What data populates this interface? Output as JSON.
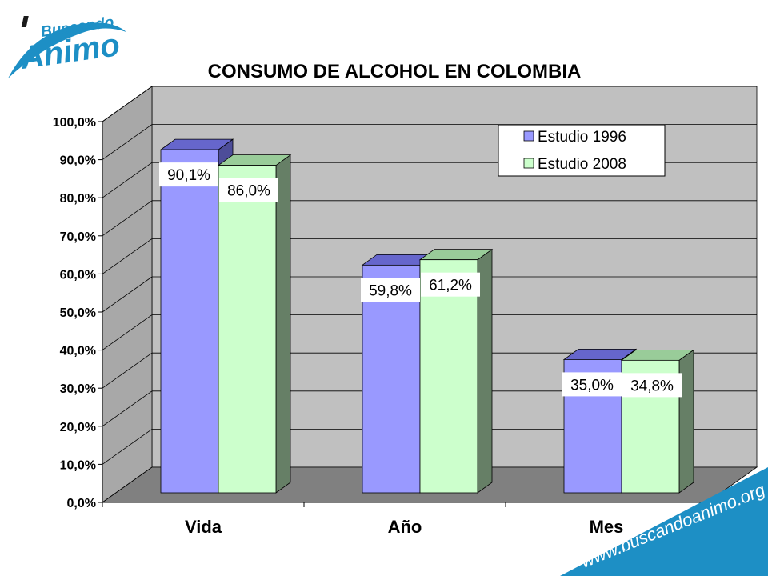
{
  "logo": {
    "small_text": "Buscando",
    "large_text": "Animo"
  },
  "watermark": {
    "url": "www.buscandoanimo.org"
  },
  "colors": {
    "series_1996_front": "#9999ff",
    "series_1996_top": "#6666cc",
    "series_1996_side": "#4d4d99",
    "series_2008_front": "#ccffcc",
    "series_2008_top": "#99cc99",
    "series_2008_side": "#667f66",
    "wall": "#c0c0c0",
    "floor": "#808080",
    "brand_blue": "#1d8fc5"
  },
  "chart_data": {
    "type": "bar",
    "title": "CONSUMO DE ALCOHOL EN COLOMBIA",
    "categories": [
      "Vida",
      "Año",
      "Mes"
    ],
    "series": [
      {
        "name": "Estudio 1996",
        "values": [
          90.1,
          59.8,
          35.0
        ],
        "labels": [
          "90,1%",
          "59,8%",
          "35,0%"
        ]
      },
      {
        "name": "Estudio 2008",
        "values": [
          86.0,
          61.2,
          34.8
        ],
        "labels": [
          "86,0%",
          "61,2%",
          "34,8%"
        ]
      }
    ],
    "yticks": [
      "0,0%",
      "10,0%",
      "20,0%",
      "30,0%",
      "40,0%",
      "50,0%",
      "60,0%",
      "70,0%",
      "80,0%",
      "90,0%",
      "100,0%"
    ],
    "ylim": [
      0,
      100
    ],
    "grid": true,
    "legend_position": "top-right",
    "style": "3d-clustered-column"
  }
}
